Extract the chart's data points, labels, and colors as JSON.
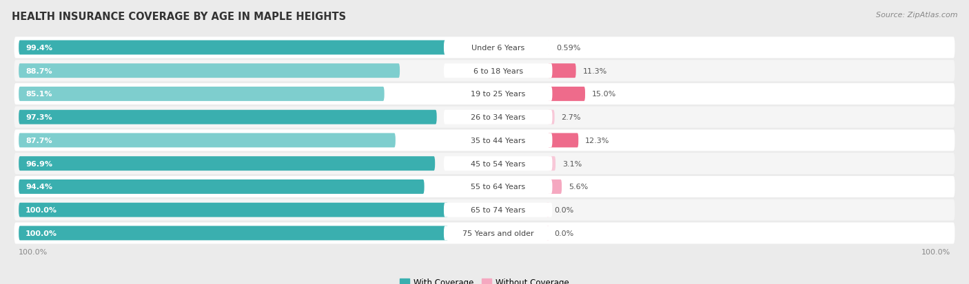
{
  "title": "HEALTH INSURANCE COVERAGE BY AGE IN MAPLE HEIGHTS",
  "source": "Source: ZipAtlas.com",
  "categories": [
    "Under 6 Years",
    "6 to 18 Years",
    "19 to 25 Years",
    "26 to 34 Years",
    "35 to 44 Years",
    "45 to 54 Years",
    "55 to 64 Years",
    "65 to 74 Years",
    "75 Years and older"
  ],
  "with_coverage": [
    99.4,
    88.7,
    85.1,
    97.3,
    87.7,
    96.9,
    94.4,
    100.0,
    100.0
  ],
  "without_coverage": [
    0.59,
    11.3,
    15.0,
    2.7,
    12.3,
    3.1,
    5.6,
    0.0,
    0.0
  ],
  "with_coverage_labels": [
    "99.4%",
    "88.7%",
    "85.1%",
    "97.3%",
    "87.7%",
    "96.9%",
    "94.4%",
    "100.0%",
    "100.0%"
  ],
  "without_coverage_labels": [
    "0.59%",
    "11.3%",
    "15.0%",
    "2.7%",
    "12.3%",
    "3.1%",
    "5.6%",
    "0.0%",
    "0.0%"
  ],
  "color_with_dark": "#3AAFAF",
  "color_with_light": "#7ECECE",
  "color_without_dark": "#EE6B8B",
  "color_without_light": "#F5A8C0",
  "color_without_vlight": "#F8C8D8",
  "bg_color": "#EBEBEB",
  "row_bg_light": "#F5F5F5",
  "row_bg_white": "#FFFFFF",
  "legend_with": "With Coverage",
  "legend_without": "Without Coverage",
  "bar_height": 0.62
}
